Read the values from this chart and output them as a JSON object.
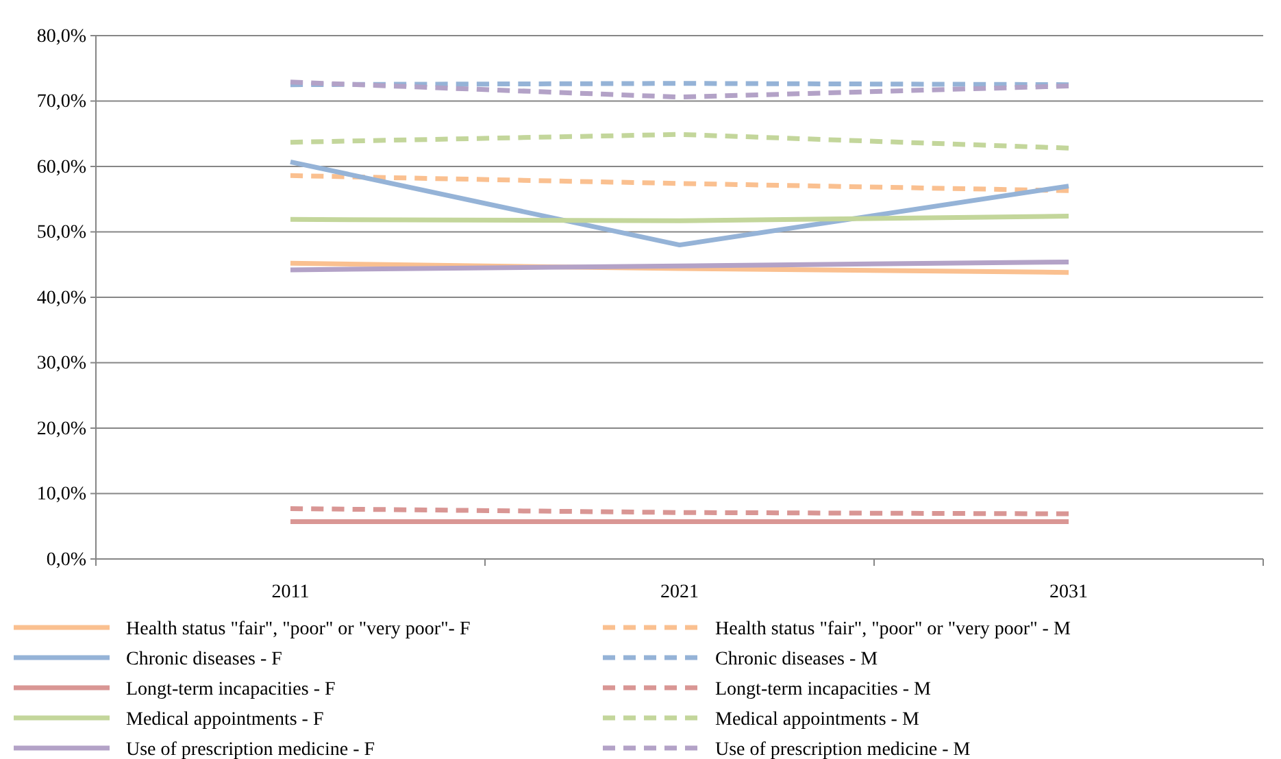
{
  "chart_data": {
    "type": "line",
    "categories": [
      "2011",
      "2021",
      "2031"
    ],
    "ylim": [
      0,
      80
    ],
    "yticks": [
      {
        "value": 0,
        "label": "0,0%"
      },
      {
        "value": 10,
        "label": "10,0%"
      },
      {
        "value": 20,
        "label": "20,0%"
      },
      {
        "value": 30,
        "label": "30,0%"
      },
      {
        "value": 40,
        "label": "40,0%"
      },
      {
        "value": 50,
        "label": "50,0%"
      },
      {
        "value": 60,
        "label": "60,0%"
      },
      {
        "value": 70,
        "label": "70,0%"
      },
      {
        "value": 80,
        "label": "80,0%"
      }
    ],
    "grid": "y",
    "legend": "bottom",
    "marker": "none",
    "series": [
      {
        "name": "Health status \"fair\", \"poor\" or \"very poor\"-  F",
        "color": "#fac090",
        "line_style": "solid",
        "values": [
          45.2,
          44.4,
          43.8
        ]
      },
      {
        "name": "Health status \"fair\", \"poor\" or \"very poor\" - M",
        "color": "#fac090",
        "line_style": "dashed",
        "values": [
          58.6,
          57.4,
          56.3
        ]
      },
      {
        "name": "Chronic diseases - F",
        "color": "#95b3d7",
        "line_style": "solid",
        "values": [
          60.7,
          48.0,
          57.0
        ]
      },
      {
        "name": "Chronic diseases - M",
        "color": "#95b3d7",
        "line_style": "dashed",
        "values": [
          72.5,
          72.7,
          72.5
        ]
      },
      {
        "name": "Longt-term incapacities - F",
        "color": "#d99694",
        "line_style": "solid",
        "values": [
          5.7,
          5.7,
          5.7
        ]
      },
      {
        "name": "Longt-term incapacities - M",
        "color": "#d99694",
        "line_style": "dashed",
        "values": [
          7.7,
          7.1,
          6.9
        ]
      },
      {
        "name": "Medical appointments - F",
        "color": "#c3d69b",
        "line_style": "solid",
        "values": [
          51.9,
          51.7,
          52.4
        ]
      },
      {
        "name": "Medical appointments - M",
        "color": "#c3d69b",
        "line_style": "dashed",
        "values": [
          63.7,
          64.9,
          62.8
        ]
      },
      {
        "name": "Use of prescription medicine - F",
        "color": "#b3a2c7",
        "line_style": "solid",
        "values": [
          44.2,
          44.8,
          45.4
        ]
      },
      {
        "name": "Use of prescription medicine - M",
        "color": "#b3a2c7",
        "line_style": "dashed",
        "values": [
          72.9,
          70.6,
          72.3
        ]
      }
    ]
  }
}
